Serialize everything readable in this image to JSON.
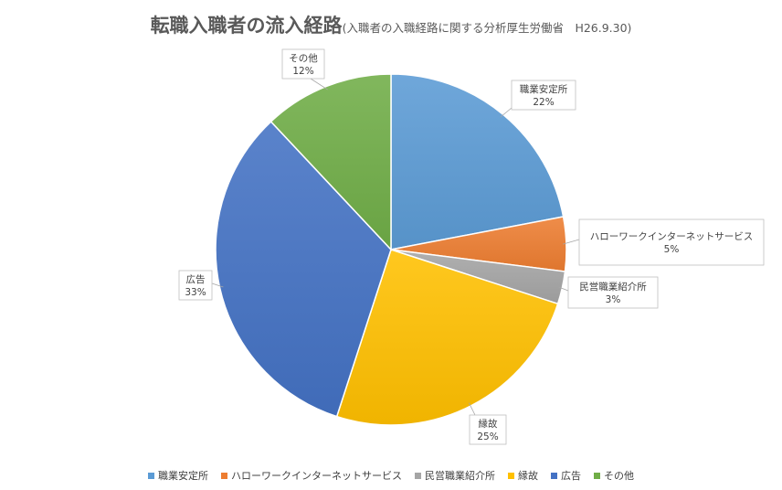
{
  "chart_data": {
    "type": "pie",
    "title": "転職入職者の流入経路",
    "subtitle": "(入職者の入職経路に関する分析厚生労働省　H26.9.30)",
    "categories": [
      "職業安定所",
      "ハローワークインターネットサービス",
      "民営職業紹介所",
      "縁故",
      "広告",
      "その他"
    ],
    "values": [
      22,
      5,
      3,
      25,
      33,
      12
    ],
    "data_labels": [
      "22%",
      "5%",
      "3%",
      "25%",
      "33%",
      "12%"
    ],
    "colors": [
      "#5B9BD5",
      "#ED7D31",
      "#A5A5A5",
      "#FFC000",
      "#4472C4",
      "#70AD47"
    ],
    "legend_position": "bottom"
  }
}
